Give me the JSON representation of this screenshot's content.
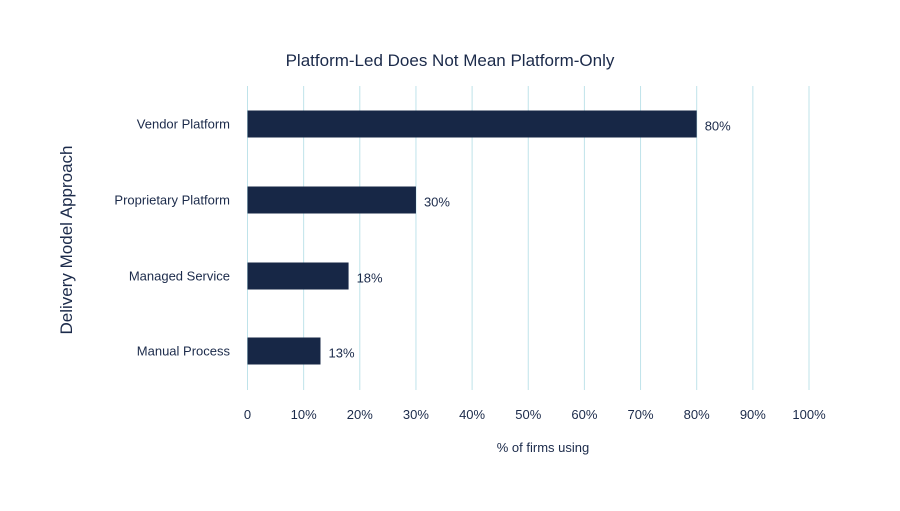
{
  "chart_data": {
    "type": "bar",
    "orientation": "horizontal",
    "title": "Platform-Led Does Not Mean Platform-Only",
    "xlabel": "% of firms using",
    "ylabel": "Delivery Model Approach",
    "categories": [
      "Vendor Platform",
      "Proprietary Platform",
      "Managed Service",
      "Manual Process"
    ],
    "values": [
      80,
      30,
      18,
      13
    ],
    "data_labels": [
      "80%",
      "30%",
      "18%",
      "13%"
    ],
    "xlim": [
      0,
      100
    ],
    "xticks": [
      0,
      10,
      20,
      30,
      40,
      50,
      60,
      70,
      80,
      90,
      100
    ],
    "xtick_labels": [
      "0",
      "10%",
      "20%",
      "30%",
      "40%",
      "50%",
      "60%",
      "70%",
      "80%",
      "90%",
      "100%"
    ],
    "grid": "vertical",
    "legend": "none",
    "colors": {
      "bar": "#172746",
      "grid": "#bfe3ea",
      "text": "#1b2a4a"
    }
  }
}
